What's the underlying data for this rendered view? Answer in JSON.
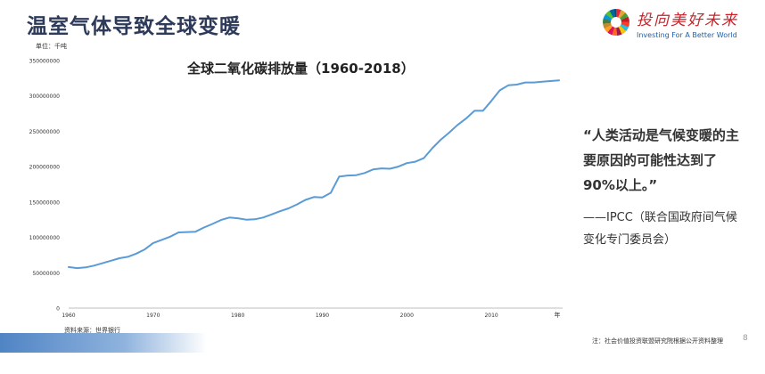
{
  "slide": {
    "title": "温室气体导致全球变暖",
    "unit_label": "单位：千吨",
    "source": "资料来源：世界银行",
    "note": "注：社会价值投资联盟研究院根据公开资料整理",
    "page_number": "8"
  },
  "logo": {
    "cn": "投向美好未来",
    "en": "Investing For A Better World",
    "icon": "sdg-wheel-icon"
  },
  "quote": {
    "text": "“人类活动是气候变暖的主要原因的可能性达到了90%以上。”",
    "attribution": "——IPCC（联合国政府间气候变化专门委员会）"
  },
  "colors": {
    "line": "#5b9bd5",
    "title": "#2d3a5a",
    "accent_red": "#c8222a"
  },
  "chart_data": {
    "type": "line",
    "title": "全球二氧化碳排放量（1960-2018）",
    "xlabel": "年",
    "ylabel": "",
    "xlim": [
      1960,
      2018
    ],
    "ylim": [
      0,
      350000000
    ],
    "x_ticks": [
      1960,
      1970,
      1980,
      1990,
      2000,
      2010
    ],
    "y_ticks": [
      0,
      50000000,
      100000000,
      150000000,
      200000000,
      250000000,
      300000000,
      350000000
    ],
    "grid": false,
    "series": [
      {
        "name": "",
        "x": [
          1960,
          1961,
          1962,
          1963,
          1964,
          1965,
          1966,
          1967,
          1968,
          1969,
          1970,
          1971,
          1972,
          1973,
          1974,
          1975,
          1976,
          1977,
          1978,
          1979,
          1980,
          1981,
          1982,
          1983,
          1984,
          1985,
          1986,
          1987,
          1988,
          1989,
          1990,
          1991,
          1992,
          1993,
          1994,
          1995,
          1996,
          1997,
          1998,
          1999,
          2000,
          2001,
          2002,
          2003,
          2004,
          2005,
          2006,
          2007,
          2008,
          2009,
          2010,
          2011,
          2012,
          2013,
          2014,
          2015,
          2016,
          2017,
          2018
        ],
        "values": [
          58000000,
          56500000,
          57500000,
          60000000,
          63500000,
          67000000,
          70500000,
          72500000,
          77000000,
          83000000,
          92000000,
          96500000,
          101000000,
          107000000,
          107500000,
          108000000,
          114000000,
          119000000,
          124500000,
          128000000,
          127000000,
          125000000,
          125500000,
          128000000,
          132500000,
          137000000,
          141000000,
          146500000,
          153000000,
          157000000,
          156500000,
          163000000,
          186000000,
          187500000,
          188000000,
          191000000,
          196000000,
          197500000,
          197000000,
          200000000,
          205000000,
          207000000,
          212000000,
          226000000,
          238000000,
          248000000,
          259000000,
          268000000,
          279000000,
          279000000,
          293000000,
          308000000,
          315000000,
          316000000,
          319000000,
          319000000,
          320000000,
          321000000,
          322000000
        ]
      }
    ]
  }
}
